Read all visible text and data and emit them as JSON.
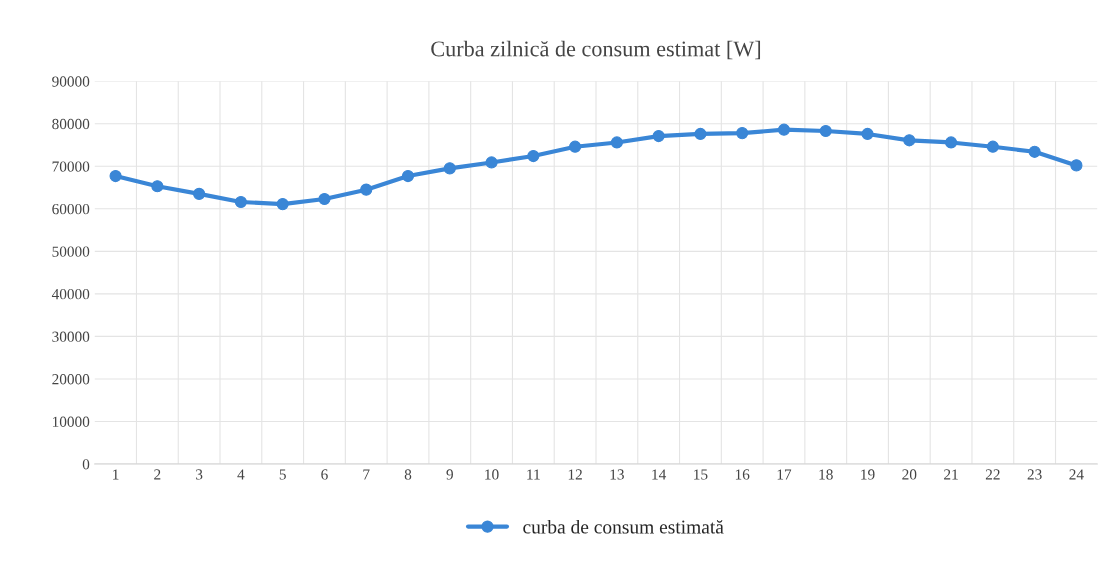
{
  "chart_data": {
    "type": "line",
    "title": "Curba zilnică de consum estimat [W]",
    "categories": [
      "1",
      "2",
      "3",
      "4",
      "5",
      "6",
      "7",
      "8",
      "9",
      "10",
      "11",
      "12",
      "13",
      "14",
      "15",
      "16",
      "17",
      "18",
      "19",
      "20",
      "21",
      "22",
      "23",
      "24"
    ],
    "series": [
      {
        "name": "curba de consum estimată",
        "color": "#3a86d6",
        "values": [
          67700,
          65300,
          63500,
          61600,
          61100,
          62300,
          64500,
          67700,
          69500,
          70900,
          72400,
          74600,
          75600,
          77100,
          77600,
          77800,
          78600,
          78300,
          77600,
          76100,
          75600,
          74600,
          73400,
          70200
        ]
      }
    ],
    "ylim": [
      0,
      90000
    ],
    "yticks": [
      0,
      10000,
      20000,
      30000,
      40000,
      50000,
      60000,
      70000,
      80000,
      90000
    ],
    "grid": true,
    "legend": "bottom",
    "marker": "circle",
    "line_style": "solid"
  }
}
